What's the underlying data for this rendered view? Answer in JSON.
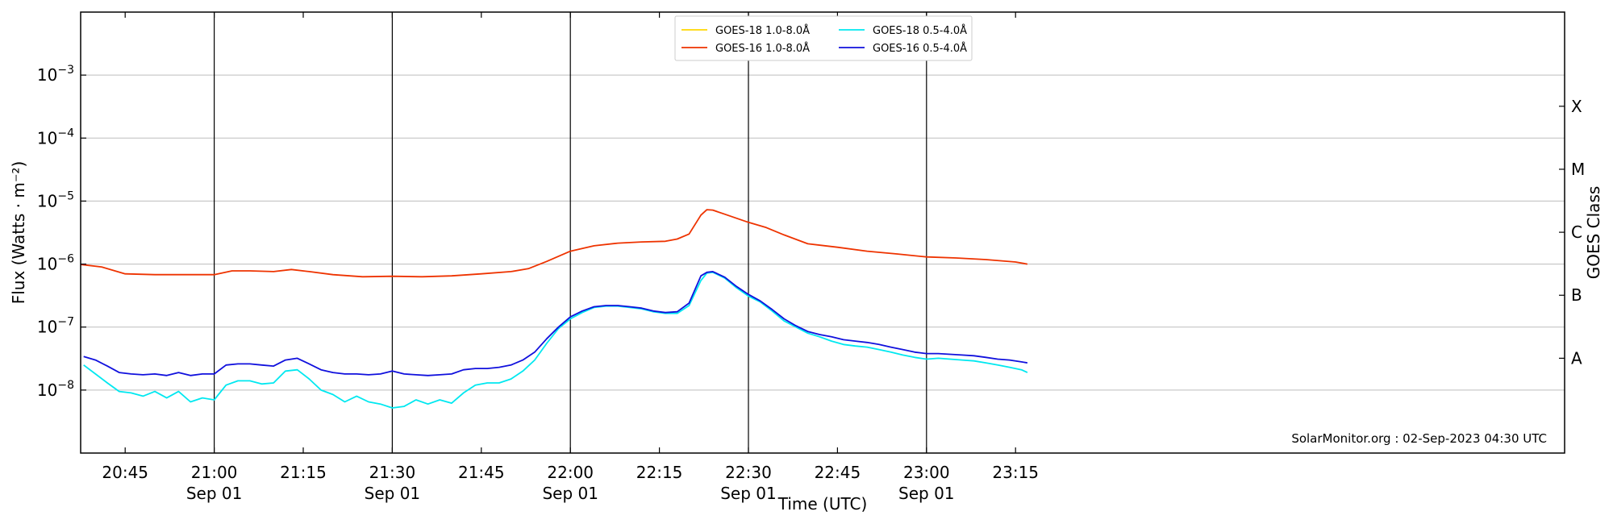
{
  "chart_data": {
    "type": "line",
    "ylabel": "Flux (Watts · m⁻²)",
    "y2label": "GOES Class",
    "xlabel": "Time (UTC)",
    "yscale": "log",
    "ylim": [
      1e-09,
      0.01
    ],
    "xlim_minutes": [
      -22.5,
      227.5
    ],
    "x_start": "2023-09-01 20:37:30",
    "y_ticks": [
      {
        "value": 1e-08,
        "base": "10",
        "exp": "−8"
      },
      {
        "value": 1e-07,
        "base": "10",
        "exp": "−7"
      },
      {
        "value": 1e-06,
        "base": "10",
        "exp": "−6"
      },
      {
        "value": 1e-05,
        "base": "10",
        "exp": "−5"
      },
      {
        "value": 0.0001,
        "base": "10",
        "exp": "−4"
      },
      {
        "value": 0.001,
        "base": "10",
        "exp": "−3"
      }
    ],
    "x_ticks": [
      {
        "time": "20:45",
        "date": "",
        "major": false
      },
      {
        "time": "21:00",
        "date": "Sep 01",
        "major": true
      },
      {
        "time": "21:15",
        "date": "",
        "major": false
      },
      {
        "time": "21:30",
        "date": "Sep 01",
        "major": true
      },
      {
        "time": "21:45",
        "date": "",
        "major": false
      },
      {
        "time": "22:00",
        "date": "Sep 01",
        "major": true
      },
      {
        "time": "22:15",
        "date": "",
        "major": false
      },
      {
        "time": "22:30",
        "date": "Sep 01",
        "major": true
      },
      {
        "time": "22:45",
        "date": "",
        "major": false
      },
      {
        "time": "23:00",
        "date": "Sep 01",
        "major": true
      },
      {
        "time": "23:15",
        "date": "",
        "major": false
      }
    ],
    "goes_classes": [
      {
        "label": "A",
        "value": 3.2e-08
      },
      {
        "label": "B",
        "value": 3.2e-07
      },
      {
        "label": "C",
        "value": 3.2e-06
      },
      {
        "label": "M",
        "value": 3.2e-05
      },
      {
        "label": "X",
        "value": 0.00032
      }
    ],
    "grid": true,
    "legend_position": "top-center",
    "legend": [
      {
        "name": "GOES-18 1.0-8.0Å",
        "color": "#ffd700"
      },
      {
        "name": "GOES-16 1.0-8.0Å",
        "color": "#ee3300"
      },
      {
        "name": "GOES-18 0.5-4.0Å",
        "color": "#00e8f0"
      },
      {
        "name": "GOES-16 0.5-4.0Å",
        "color": "#1010dd"
      }
    ],
    "series": [
      {
        "name": "GOES-16 1.0-8.0Å",
        "color": "#ee3300",
        "x": [
          "20:37",
          "20:41",
          "20:45",
          "20:50",
          "20:55",
          "21:00",
          "21:03",
          "21:06",
          "21:10",
          "21:13",
          "21:16",
          "21:20",
          "21:25",
          "21:30",
          "21:35",
          "21:40",
          "21:45",
          "21:50",
          "21:53",
          "21:56",
          "22:00",
          "22:04",
          "22:08",
          "22:12",
          "22:16",
          "22:18",
          "22:20",
          "22:22",
          "22:23",
          "22:24",
          "22:26",
          "22:30",
          "22:33",
          "22:36",
          "22:40",
          "22:45",
          "22:50",
          "22:55",
          "23:00",
          "23:05",
          "23:10",
          "23:15",
          "23:17"
        ],
        "y": [
          1e-06,
          9e-07,
          7e-07,
          6.8e-07,
          6.8e-07,
          6.8e-07,
          7.8e-07,
          7.8e-07,
          7.6e-07,
          8.2e-07,
          7.6e-07,
          6.8e-07,
          6.3e-07,
          6.4e-07,
          6.3e-07,
          6.5e-07,
          7e-07,
          7.6e-07,
          8.5e-07,
          1.1e-06,
          1.6e-06,
          1.95e-06,
          2.15e-06,
          2.25e-06,
          2.3e-06,
          2.5e-06,
          3e-06,
          6e-06,
          7.3e-06,
          7.2e-06,
          6.2e-06,
          4.6e-06,
          3.8e-06,
          2.9e-06,
          2.1e-06,
          1.85e-06,
          1.6e-06,
          1.45e-06,
          1.3e-06,
          1.25e-06,
          1.18e-06,
          1.08e-06,
          1e-06
        ]
      },
      {
        "name": "GOES-18 0.5-4.0Å",
        "color": "#00e8f0",
        "x": [
          "20:38",
          "20:40",
          "20:42",
          "20:44",
          "20:46",
          "20:48",
          "20:50",
          "20:52",
          "20:54",
          "20:56",
          "20:58",
          "21:00",
          "21:02",
          "21:04",
          "21:06",
          "21:08",
          "21:10",
          "21:12",
          "21:14",
          "21:16",
          "21:18",
          "21:20",
          "21:22",
          "21:24",
          "21:26",
          "21:28",
          "21:30",
          "21:32",
          "21:34",
          "21:36",
          "21:38",
          "21:40",
          "21:42",
          "21:44",
          "21:46",
          "21:48",
          "21:50",
          "21:52",
          "21:54",
          "21:56",
          "21:58",
          "22:00",
          "22:02",
          "22:04",
          "22:06",
          "22:08",
          "22:10",
          "22:12",
          "22:14",
          "22:16",
          "22:18",
          "22:20",
          "22:22",
          "22:23",
          "22:24",
          "22:26",
          "22:28",
          "22:30",
          "22:32",
          "22:34",
          "22:36",
          "22:38",
          "22:40",
          "22:42",
          "22:44",
          "22:46",
          "22:48",
          "22:50",
          "22:52",
          "22:54",
          "22:56",
          "22:58",
          "23:00",
          "23:02",
          "23:04",
          "23:06",
          "23:08",
          "23:10",
          "23:12",
          "23:14",
          "23:16",
          "23:17"
        ],
        "y": [
          2.5e-08,
          1.8e-08,
          1.3e-08,
          9.5e-09,
          9e-09,
          8e-09,
          9.5e-09,
          7.5e-09,
          9.5e-09,
          6.5e-09,
          7.5e-09,
          7e-09,
          1.2e-08,
          1.4e-08,
          1.4e-08,
          1.25e-08,
          1.3e-08,
          2e-08,
          2.1e-08,
          1.5e-08,
          1e-08,
          8.5e-09,
          6.5e-09,
          8e-09,
          6.5e-09,
          6e-09,
          5.2e-09,
          5.5e-09,
          7e-09,
          6e-09,
          7e-09,
          6.2e-09,
          9e-09,
          1.2e-08,
          1.3e-08,
          1.3e-08,
          1.5e-08,
          2e-08,
          3e-08,
          5.5e-08,
          9.5e-08,
          1.35e-07,
          1.7e-07,
          2.05e-07,
          2.15e-07,
          2.15e-07,
          2.05e-07,
          1.95e-07,
          1.75e-07,
          1.65e-07,
          1.65e-07,
          2.2e-07,
          5.5e-07,
          7.2e-07,
          7.4e-07,
          6e-07,
          4.2e-07,
          3.1e-07,
          2.5e-07,
          1.8e-07,
          1.25e-07,
          1e-07,
          8e-08,
          7e-08,
          6e-08,
          5.3e-08,
          5e-08,
          4.8e-08,
          4.4e-08,
          4e-08,
          3.6e-08,
          3.3e-08,
          3.1e-08,
          3.2e-08,
          3.1e-08,
          3e-08,
          2.9e-08,
          2.7e-08,
          2.5e-08,
          2.3e-08,
          2.1e-08,
          1.9e-08
        ]
      },
      {
        "name": "GOES-16 0.5-4.0Å",
        "color": "#1010dd",
        "x": [
          "20:38",
          "20:40",
          "20:42",
          "20:44",
          "20:46",
          "20:48",
          "20:50",
          "20:52",
          "20:54",
          "20:56",
          "20:58",
          "21:00",
          "21:02",
          "21:04",
          "21:06",
          "21:08",
          "21:10",
          "21:12",
          "21:14",
          "21:16",
          "21:18",
          "21:20",
          "21:22",
          "21:24",
          "21:26",
          "21:28",
          "21:30",
          "21:32",
          "21:34",
          "21:36",
          "21:38",
          "21:40",
          "21:42",
          "21:44",
          "21:46",
          "21:48",
          "21:50",
          "21:52",
          "21:54",
          "21:56",
          "21:58",
          "22:00",
          "22:02",
          "22:04",
          "22:06",
          "22:08",
          "22:10",
          "22:12",
          "22:14",
          "22:16",
          "22:18",
          "22:20",
          "22:22",
          "22:23",
          "22:24",
          "22:26",
          "22:28",
          "22:30",
          "22:32",
          "22:34",
          "22:36",
          "22:38",
          "22:40",
          "22:42",
          "22:44",
          "22:46",
          "22:48",
          "22:50",
          "22:52",
          "22:54",
          "22:56",
          "22:58",
          "23:00",
          "23:02",
          "23:04",
          "23:06",
          "23:08",
          "23:10",
          "23:12",
          "23:14",
          "23:16",
          "23:17"
        ],
        "y": [
          3.4e-08,
          3e-08,
          2.4e-08,
          1.9e-08,
          1.8e-08,
          1.75e-08,
          1.8e-08,
          1.7e-08,
          1.9e-08,
          1.7e-08,
          1.8e-08,
          1.8e-08,
          2.5e-08,
          2.6e-08,
          2.6e-08,
          2.5e-08,
          2.4e-08,
          3e-08,
          3.2e-08,
          2.6e-08,
          2.1e-08,
          1.9e-08,
          1.8e-08,
          1.8e-08,
          1.75e-08,
          1.8e-08,
          2e-08,
          1.8e-08,
          1.75e-08,
          1.7e-08,
          1.75e-08,
          1.8e-08,
          2.1e-08,
          2.2e-08,
          2.2e-08,
          2.3e-08,
          2.5e-08,
          3e-08,
          4e-08,
          6.5e-08,
          1e-07,
          1.45e-07,
          1.8e-07,
          2.1e-07,
          2.2e-07,
          2.2e-07,
          2.1e-07,
          2e-07,
          1.8e-07,
          1.7e-07,
          1.75e-07,
          2.4e-07,
          6.5e-07,
          7.4e-07,
          7.6e-07,
          6.2e-07,
          4.4e-07,
          3.3e-07,
          2.6e-07,
          1.9e-07,
          1.35e-07,
          1.05e-07,
          8.5e-08,
          7.6e-08,
          7e-08,
          6.3e-08,
          6e-08,
          5.7e-08,
          5.3e-08,
          4.8e-08,
          4.4e-08,
          4e-08,
          3.8e-08,
          3.8e-08,
          3.7e-08,
          3.6e-08,
          3.5e-08,
          3.3e-08,
          3.1e-08,
          3e-08,
          2.8e-08,
          2.7e-08
        ]
      }
    ],
    "footer": "SolarMonitor.org : 02-Sep-2023 04:30 UTC"
  }
}
